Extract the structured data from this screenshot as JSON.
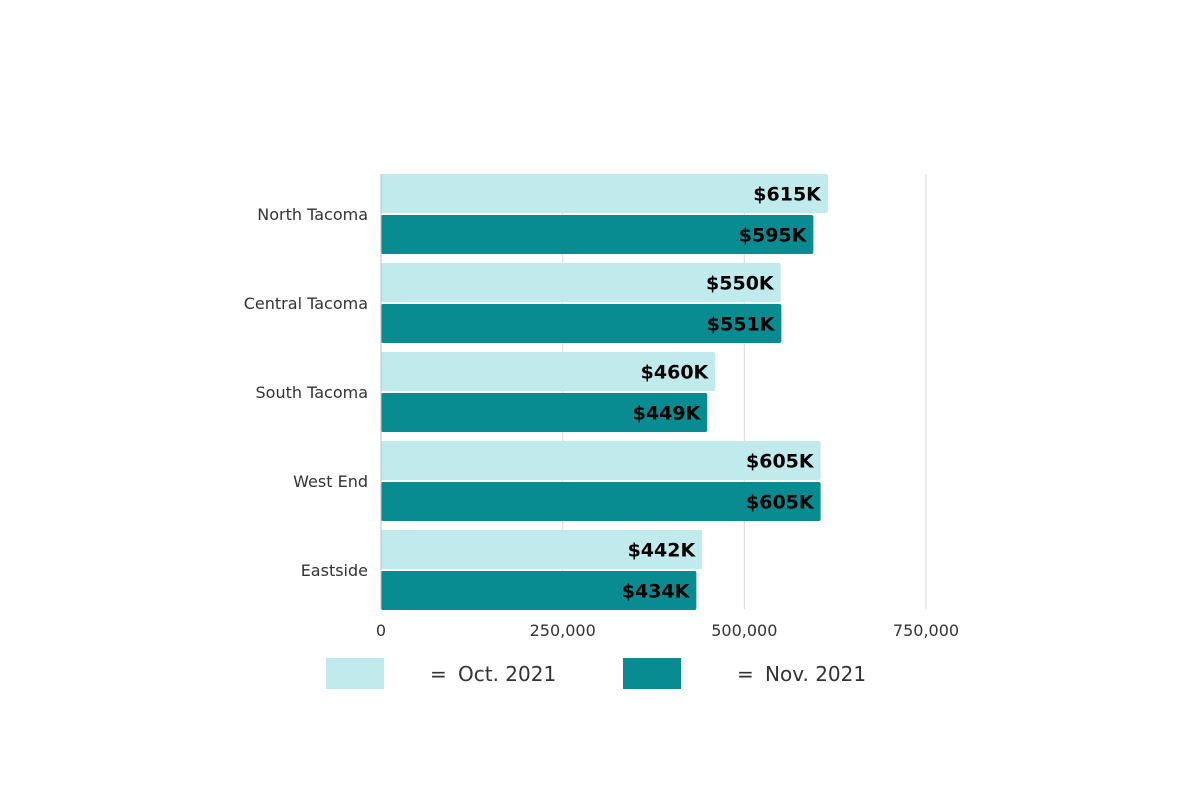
{
  "chart_data": {
    "type": "bar",
    "orientation": "horizontal",
    "categories": [
      "North Tacoma",
      "Central Tacoma",
      "South Tacoma",
      "West End",
      "Eastside"
    ],
    "series": [
      {
        "name": "Oct. 2021",
        "color": "#c0eaec",
        "values": [
          615000,
          550000,
          460000,
          605000,
          442000
        ],
        "labels": [
          "$615K",
          "$550K",
          "$460K",
          "$605K",
          "$442K"
        ]
      },
      {
        "name": "Nov. 2021",
        "color": "#088c91",
        "values": [
          595000,
          551000,
          449000,
          605000,
          434000
        ],
        "labels": [
          "$595K",
          "$551K",
          "$449K",
          "$605K",
          "$434K"
        ]
      }
    ],
    "xlim": [
      0,
      750000
    ],
    "xticks": [
      0,
      250000,
      500000,
      750000
    ],
    "xtick_labels": [
      "0",
      "250,000",
      "500,000",
      "750,000"
    ],
    "grid": "vertical",
    "legend_position": "bottom",
    "legend": [
      {
        "equals": "=",
        "label": "Oct. 2021",
        "color": "#c0eaec"
      },
      {
        "equals": "=",
        "label": "Nov. 2021",
        "color": "#088c91"
      }
    ]
  }
}
